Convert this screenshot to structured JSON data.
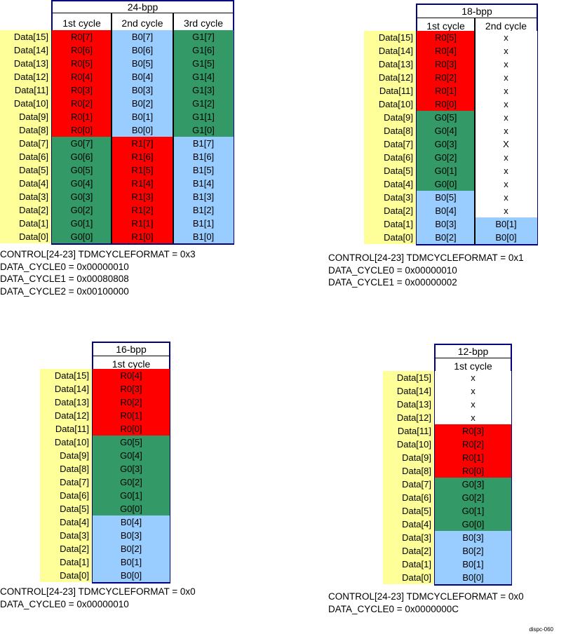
{
  "colors": {
    "R": "#ff0000",
    "G": "#339966",
    "B": "#99ccff",
    "x": "#ffffff",
    "X": "#ffffff",
    "border": "#000080",
    "label_bg": "#ffff99"
  },
  "diagrams": [
    {
      "id": "24bpp",
      "title": "24-bpp",
      "headers": [
        "1st cycle",
        "2nd cycle",
        "3rd cycle"
      ],
      "labels": [
        "Data[15]",
        "Data[14]",
        "Data[13]",
        "Data[12]",
        "Data[11]",
        "Data[10]",
        "Data[9]",
        "Data[8]",
        "Data[7]",
        "Data[6]",
        "Data[5]",
        "Data[4]",
        "Data[3]",
        "Data[2]",
        "Data[1]",
        "Data[0]"
      ],
      "columns": [
        [
          "R0[7]",
          "R0[6]",
          "R0[5]",
          "R0[4]",
          "R0[3]",
          "R0[2]",
          "R0[1]",
          "R0[0]",
          "G0[7]",
          "G0[6]",
          "G0[5]",
          "G0[4]",
          "G0[3]",
          "G0[2]",
          "G0[1]",
          "G0[0]"
        ],
        [
          "B0[7]",
          "B0[6]",
          "B0[5]",
          "B0[4]",
          "B0[3]",
          "B0[2]",
          "B0[1]",
          "B0[0]",
          "R1[7]",
          "R1[6]",
          "R1[5]",
          "R1[4]",
          "R1[3]",
          "R1[2]",
          "R1[1]",
          "R1[0]"
        ],
        [
          "G1[7]",
          "G1[6]",
          "G1[5]",
          "G1[4]",
          "G1[3]",
          "G1[2]",
          "G1[1]",
          "G1[0]",
          "B1[7]",
          "B1[6]",
          "B1[5]",
          "B1[4]",
          "B1[3]",
          "B1[2]",
          "B1[1]",
          "B1[0]"
        ]
      ],
      "notes": [
        "CONTROL[24-23] TDMCYCLEFORMAT = 0x3",
        "DATA_CYCLE0 = 0x00000010",
        "DATA_CYCLE1 = 0x00080808",
        "DATA_CYCLE2 = 0x00100000"
      ]
    },
    {
      "id": "18bpp",
      "title": "18-bpp",
      "headers": [
        "1st cycle",
        "2nd cycle"
      ],
      "labels": [
        "Data[15]",
        "Data[14]",
        "Data[13]",
        "Data[12]",
        "Data[11]",
        "Data[10]",
        "Data[9]",
        "Data[8]",
        "Data[7]",
        "Data[6]",
        "Data[5]",
        "Data[4]",
        "Data[3]",
        "Data[2]",
        "Data[1]",
        "Data[0]"
      ],
      "columns": [
        [
          "R0[5]",
          "R0[4]",
          "R0[3]",
          "R0[2]",
          "R0[1]",
          "R0[0]",
          "G0[5]",
          "G0[4]",
          "G0[3]",
          "G0[2]",
          "G0[1]",
          "G0[0]",
          "B0[5]",
          "B0[4]",
          "B0[3]",
          "B0[2]"
        ],
        [
          "x",
          "x",
          "x",
          "x",
          "x",
          "x",
          "x",
          "x",
          "X",
          "x",
          "x",
          "x",
          "x",
          "x",
          "B0[1]",
          "B0[0]"
        ]
      ],
      "notes": [
        "CONTROL[24-23] TDMCYCLEFORMAT = 0x1",
        "DATA_CYCLE0 = 0x00000010",
        "DATA_CYCLE1 = 0x00000002"
      ]
    },
    {
      "id": "16bpp",
      "title": "16-bpp",
      "headers": [
        "1st cycle"
      ],
      "labels": [
        "Data[15]",
        "Data[14]",
        "Data[13]",
        "Data[12]",
        "Data[11]",
        "Data[10]",
        "Data[9]",
        "Data[8]",
        "Data[7]",
        "Data[6]",
        "Data[5]",
        "Data[4]",
        "Data[3]",
        "Data[2]",
        "Data[1]",
        "Data[0]"
      ],
      "columns": [
        [
          "R0[4]",
          "R0[3]",
          "R0[2]",
          "R0[1]",
          "R0[0]",
          "G0[5]",
          "G0[4]",
          "G0[3]",
          "G0[2]",
          "G0[1]",
          "G0[0]",
          "B0[4]",
          "B0[3]",
          "B0[2]",
          "B0[1]",
          "B0[0]"
        ]
      ],
      "notes": [
        "CONTROL[24-23] TDMCYCLEFORMAT = 0x0",
        "DATA_CYCLE0 = 0x00000010"
      ]
    },
    {
      "id": "12bpp",
      "title": "12-bpp",
      "headers": [
        "1st cycle"
      ],
      "labels": [
        "Data[15]",
        "Data[14]",
        "Data[13]",
        "Data[12]",
        "Data[11]",
        "Data[10]",
        "Data[9]",
        "Data[8]",
        "Data[7]",
        "Data[6]",
        "Data[5]",
        "Data[4]",
        "Data[3]",
        "Data[2]",
        "Data[1]",
        "Data[0]"
      ],
      "columns": [
        [
          "x",
          "x",
          "x",
          "x",
          "R0[3]",
          "R0[2]",
          "R0[1]",
          "R0[0]",
          "G0[3]",
          "G0[2]",
          "G0[1]",
          "G0[0]",
          "B0[3]",
          "B0[2]",
          "B0[1]",
          "B0[0]"
        ]
      ],
      "notes": [
        "CONTROL[24-23] TDMCYCLEFORMAT = 0x0",
        "DATA_CYCLE0 = 0x0000000C"
      ]
    }
  ],
  "credit": "dispc-060"
}
